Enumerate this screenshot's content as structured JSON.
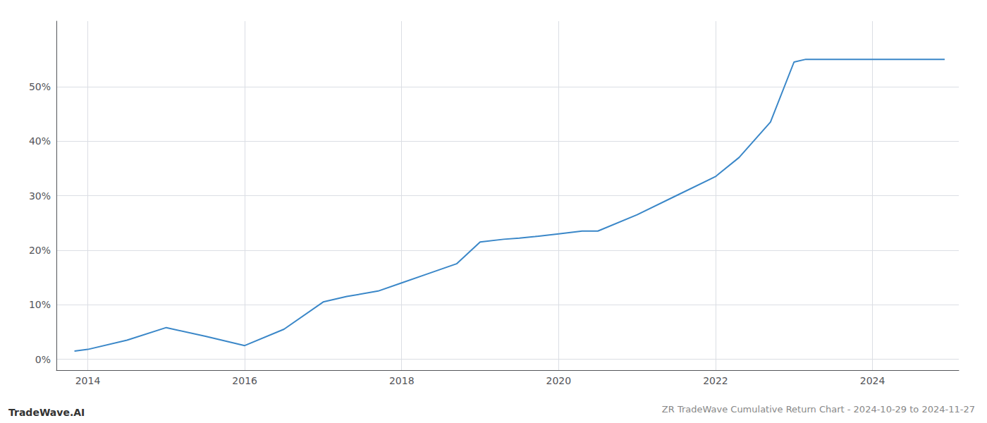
{
  "chart_data": {
    "type": "line",
    "title": "ZR TradeWave Cumulative Return Chart - 2024-10-29 to 2024-11-27",
    "annotations": [
      "TradeWave.AI"
    ],
    "x": [
      2013.83,
      2014.0,
      2014.5,
      2015.0,
      2015.5,
      2016.0,
      2016.5,
      2017.0,
      2017.3,
      2017.7,
      2018.0,
      2018.3,
      2018.7,
      2019.0,
      2019.3,
      2019.5,
      2019.7,
      2020.0,
      2020.3,
      2020.5,
      2021.0,
      2021.5,
      2022.0,
      2022.3,
      2022.7,
      2023.0,
      2023.15,
      2023.4,
      2023.7,
      2024.0,
      2024.5,
      2024.92
    ],
    "values": [
      1.5,
      1.8,
      3.5,
      5.8,
      4.2,
      2.5,
      5.5,
      10.5,
      11.5,
      12.5,
      14.0,
      15.5,
      17.5,
      21.5,
      22.0,
      22.2,
      22.5,
      23.0,
      23.5,
      23.5,
      26.5,
      30.0,
      33.5,
      37.0,
      43.5,
      54.5,
      55.0,
      55.0,
      55.0,
      55.0,
      55.0,
      55.0
    ],
    "color": "#3a87c8",
    "xlim": [
      2013.6,
      2025.1
    ],
    "ylim": [
      -2,
      62
    ],
    "xticks": [
      2014,
      2016,
      2018,
      2020,
      2022,
      2024
    ],
    "yticks": [
      {
        "value": 0,
        "label": "0%"
      },
      {
        "value": 10,
        "label": "10%"
      },
      {
        "value": 20,
        "label": "20%"
      },
      {
        "value": 30,
        "label": "30%"
      },
      {
        "value": 40,
        "label": "40%"
      },
      {
        "value": 50,
        "label": "50%"
      }
    ],
    "grid": true
  }
}
